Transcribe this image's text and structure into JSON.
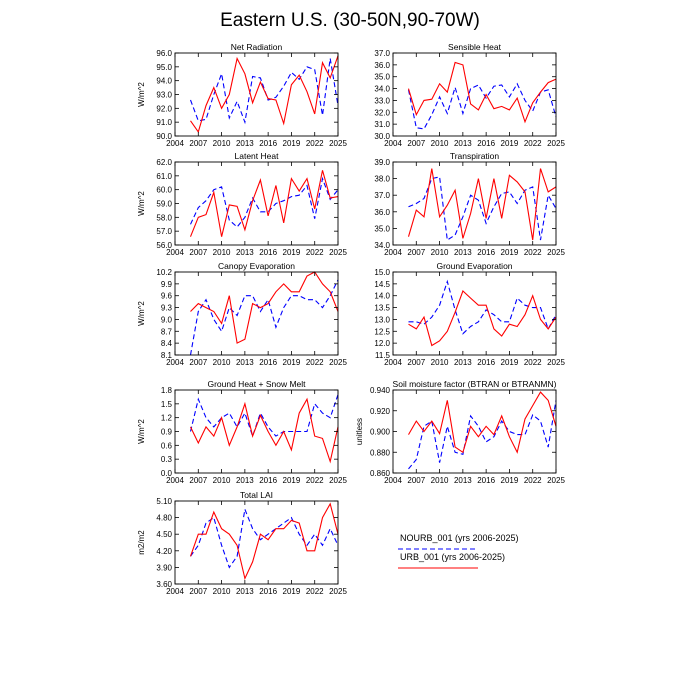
{
  "title": "Eastern U.S. (30-50N,90-70W)",
  "legend": [
    {
      "label": "NOURB_001 (yrs 2006-2025)",
      "color": "#0000ff",
      "dashed": true
    },
    {
      "label": "URB_001 (yrs 2006-2025)",
      "color": "#ff0000",
      "dashed": false
    }
  ],
  "chart_data": [
    {
      "type": "line",
      "title": "Net Radiation",
      "ylabel": "W/m^2",
      "xlim": [
        2004,
        2025
      ],
      "xticks": [
        2004,
        2007,
        2010,
        2013,
        2016,
        2019,
        2022,
        2025
      ],
      "ylim": [
        90.0,
        96.0
      ],
      "yticks": [
        "90.0",
        "91.0",
        "92.0",
        "93.0",
        "94.0",
        "95.0",
        "96.0"
      ],
      "x": [
        2006,
        2007,
        2008,
        2009,
        2010,
        2011,
        2012,
        2013,
        2014,
        2015,
        2016,
        2017,
        2018,
        2019,
        2020,
        2021,
        2022,
        2023,
        2024,
        2025
      ],
      "series": [
        {
          "name": "NOURB_001",
          "color": "#0000ff",
          "dashed": true,
          "values": [
            92.6,
            91.1,
            91.2,
            93.0,
            94.5,
            91.3,
            92.5,
            91.0,
            94.3,
            94.2,
            92.6,
            92.8,
            93.6,
            94.6,
            94.1,
            95.0,
            94.8,
            91.5,
            95.6,
            92.2
          ]
        },
        {
          "name": "URB_001",
          "color": "#ff0000",
          "dashed": false,
          "values": [
            91.1,
            90.3,
            92.2,
            93.5,
            92.0,
            93.0,
            95.6,
            94.5,
            92.4,
            93.9,
            92.7,
            92.6,
            90.9,
            93.7,
            94.4,
            93.2,
            91.6,
            95.3,
            94.2,
            95.8
          ]
        }
      ]
    },
    {
      "type": "line",
      "title": "Sensible Heat",
      "ylabel": "",
      "xlim": [
        2004,
        2025
      ],
      "xticks": [
        2004,
        2007,
        2010,
        2013,
        2016,
        2019,
        2022,
        2025
      ],
      "ylim": [
        30.0,
        37.0
      ],
      "yticks": [
        "30.0",
        "31.0",
        "32.0",
        "33.0",
        "34.0",
        "35.0",
        "36.0",
        "37.0"
      ],
      "x": [
        2006,
        2007,
        2008,
        2009,
        2010,
        2011,
        2012,
        2013,
        2014,
        2015,
        2016,
        2017,
        2018,
        2019,
        2020,
        2021,
        2022,
        2023,
        2024,
        2025
      ],
      "series": [
        {
          "name": "NOURB_001",
          "color": "#0000ff",
          "dashed": true,
          "values": [
            33.9,
            30.7,
            30.6,
            31.8,
            33.3,
            31.9,
            34.1,
            31.9,
            34.0,
            34.3,
            33.2,
            34.2,
            34.3,
            33.3,
            34.4,
            33.0,
            32.1,
            33.7,
            33.9,
            31.6
          ]
        },
        {
          "name": "URB_001",
          "color": "#ff0000",
          "dashed": false,
          "values": [
            34.0,
            31.8,
            33.0,
            33.1,
            34.4,
            33.7,
            36.2,
            36.0,
            32.7,
            32.2,
            33.5,
            32.3,
            32.5,
            32.2,
            33.2,
            31.2,
            32.8,
            33.7,
            34.5,
            34.8
          ]
        }
      ]
    },
    {
      "type": "line",
      "title": "Latent Heat",
      "ylabel": "W/m^2",
      "xlim": [
        2004,
        2025
      ],
      "xticks": [
        2004,
        2007,
        2010,
        2013,
        2016,
        2019,
        2022,
        2025
      ],
      "ylim": [
        56.0,
        62.0
      ],
      "yticks": [
        "56.0",
        "57.0",
        "58.0",
        "59.0",
        "60.0",
        "61.0",
        "62.0"
      ],
      "x": [
        2006,
        2007,
        2008,
        2009,
        2010,
        2011,
        2012,
        2013,
        2014,
        2015,
        2016,
        2017,
        2018,
        2019,
        2020,
        2021,
        2022,
        2023,
        2024,
        2025
      ],
      "series": [
        {
          "name": "NOURB_001",
          "color": "#0000ff",
          "dashed": true,
          "values": [
            57.5,
            58.7,
            59.2,
            60.0,
            60.2,
            57.8,
            57.3,
            58.0,
            59.4,
            58.4,
            58.4,
            59.0,
            59.2,
            59.5,
            59.6,
            60.3,
            57.9,
            60.8,
            59.3,
            60.0
          ]
        },
        {
          "name": "URB_001",
          "color": "#ff0000",
          "dashed": false,
          "values": [
            56.6,
            58.0,
            58.2,
            59.8,
            56.6,
            58.9,
            58.8,
            57.1,
            59.2,
            60.7,
            58.1,
            60.3,
            57.6,
            60.8,
            59.9,
            60.8,
            58.6,
            61.4,
            59.4,
            59.5
          ]
        }
      ]
    },
    {
      "type": "line",
      "title": "Transpiration",
      "ylabel": "",
      "xlim": [
        2004,
        2025
      ],
      "xticks": [
        2004,
        2007,
        2010,
        2013,
        2016,
        2019,
        2022,
        2025
      ],
      "ylim": [
        34.0,
        39.0
      ],
      "yticks": [
        "34.0",
        "35.0",
        "36.0",
        "37.0",
        "38.0",
        "39.0"
      ],
      "x": [
        2006,
        2007,
        2008,
        2009,
        2010,
        2011,
        2012,
        2013,
        2014,
        2015,
        2016,
        2017,
        2018,
        2019,
        2020,
        2021,
        2022,
        2023,
        2024,
        2025
      ],
      "series": [
        {
          "name": "NOURB_001",
          "color": "#0000ff",
          "dashed": true,
          "values": [
            36.3,
            36.5,
            36.8,
            38.0,
            38.1,
            34.3,
            34.6,
            35.7,
            37.0,
            36.7,
            35.3,
            36.3,
            37.1,
            37.2,
            36.5,
            37.3,
            37.5,
            34.3,
            37.0,
            36.2
          ]
        },
        {
          "name": "URB_001",
          "color": "#ff0000",
          "dashed": false,
          "values": [
            34.5,
            36.1,
            35.7,
            38.6,
            35.7,
            36.4,
            37.3,
            34.4,
            35.9,
            38.0,
            35.6,
            38.0,
            35.6,
            38.2,
            37.8,
            37.2,
            34.3,
            38.6,
            37.2,
            37.5
          ]
        }
      ]
    },
    {
      "type": "line",
      "title": "Canopy Evaporation",
      "ylabel": "W/m^2",
      "xlim": [
        2004,
        2025
      ],
      "xticks": [
        2004,
        2007,
        2010,
        2013,
        2016,
        2019,
        2022,
        2025
      ],
      "ylim": [
        8.1,
        10.2
      ],
      "yticks": [
        "8.1",
        "8.4",
        "8.7",
        "9.0",
        "9.3",
        "9.6",
        "9.9",
        "10.2"
      ],
      "x": [
        2006,
        2007,
        2008,
        2009,
        2010,
        2011,
        2012,
        2013,
        2014,
        2015,
        2016,
        2017,
        2018,
        2019,
        2020,
        2021,
        2022,
        2023,
        2024,
        2025
      ],
      "series": [
        {
          "name": "NOURB_001",
          "color": "#0000ff",
          "dashed": true,
          "values": [
            8.1,
            9.2,
            9.5,
            9.0,
            8.7,
            9.3,
            9.1,
            9.6,
            9.6,
            9.2,
            9.5,
            8.8,
            9.3,
            9.6,
            9.6,
            9.5,
            9.5,
            9.3,
            9.6,
            10.0
          ]
        },
        {
          "name": "URB_001",
          "color": "#ff0000",
          "dashed": false,
          "values": [
            9.2,
            9.4,
            9.3,
            9.2,
            8.9,
            9.6,
            8.4,
            8.5,
            9.4,
            9.3,
            9.4,
            9.7,
            9.9,
            9.7,
            9.7,
            10.1,
            10.2,
            9.9,
            9.7,
            9.2
          ]
        }
      ]
    },
    {
      "type": "line",
      "title": "Ground Evaporation",
      "ylabel": "",
      "xlim": [
        2004,
        2025
      ],
      "xticks": [
        2004,
        2007,
        2010,
        2013,
        2016,
        2019,
        2022,
        2025
      ],
      "ylim": [
        11.5,
        15.0
      ],
      "yticks": [
        "11.5",
        "12.0",
        "12.5",
        "13.0",
        "13.5",
        "14.0",
        "14.5",
        "15.0"
      ],
      "x": [
        2006,
        2007,
        2008,
        2009,
        2010,
        2011,
        2012,
        2013,
        2014,
        2015,
        2016,
        2017,
        2018,
        2019,
        2020,
        2021,
        2022,
        2023,
        2024,
        2025
      ],
      "series": [
        {
          "name": "NOURB_001",
          "color": "#0000ff",
          "dashed": true,
          "values": [
            12.9,
            12.9,
            12.8,
            13.1,
            13.6,
            14.6,
            13.4,
            12.4,
            12.7,
            12.9,
            13.4,
            13.2,
            12.9,
            12.9,
            13.9,
            13.6,
            13.5,
            13.5,
            12.6,
            13.2
          ]
        },
        {
          "name": "URB_001",
          "color": "#ff0000",
          "dashed": false,
          "values": [
            12.8,
            12.6,
            13.1,
            11.9,
            12.1,
            12.5,
            13.3,
            14.2,
            13.9,
            13.6,
            13.6,
            12.6,
            12.3,
            12.8,
            12.7,
            13.2,
            14.0,
            13.0,
            12.6,
            13.1
          ]
        }
      ]
    },
    {
      "type": "line",
      "title": "Ground Heat + Snow Melt",
      "ylabel": "W/m^2",
      "xlim": [
        2004,
        2025
      ],
      "xticks": [
        2004,
        2007,
        2010,
        2013,
        2016,
        2019,
        2022,
        2025
      ],
      "ylim": [
        0.0,
        1.8
      ],
      "yticks": [
        "0.0",
        "0.3",
        "0.6",
        "0.9",
        "1.2",
        "1.5",
        "1.8"
      ],
      "x": [
        2006,
        2007,
        2008,
        2009,
        2010,
        2011,
        2012,
        2013,
        2014,
        2015,
        2016,
        2017,
        2018,
        2019,
        2020,
        2021,
        2022,
        2023,
        2024,
        2025
      ],
      "series": [
        {
          "name": "NOURB_001",
          "color": "#0000ff",
          "dashed": true,
          "values": [
            0.9,
            1.6,
            1.2,
            1.0,
            1.2,
            1.3,
            1.0,
            1.3,
            0.8,
            1.3,
            1.0,
            0.8,
            0.9,
            0.9,
            0.9,
            0.9,
            1.5,
            1.3,
            1.2,
            1.7
          ]
        },
        {
          "name": "URB_001",
          "color": "#ff0000",
          "dashed": false,
          "values": [
            1.0,
            0.65,
            1.0,
            0.8,
            1.2,
            0.6,
            1.0,
            1.5,
            0.8,
            1.25,
            0.9,
            0.6,
            0.9,
            0.5,
            1.3,
            1.6,
            0.8,
            0.75,
            0.25,
            1.0
          ]
        }
      ]
    },
    {
      "type": "line",
      "title": "Soil moisture factor (BTRAN or BTRANMN)",
      "ylabel": "unitless",
      "xlim": [
        2004,
        2025
      ],
      "xticks": [
        2004,
        2007,
        2010,
        2013,
        2016,
        2019,
        2022,
        2025
      ],
      "ylim": [
        0.86,
        0.94
      ],
      "yticks": [
        "0.860",
        "0.880",
        "0.900",
        "0.920",
        "0.940"
      ],
      "x": [
        2006,
        2007,
        2008,
        2009,
        2010,
        2011,
        2012,
        2013,
        2014,
        2015,
        2016,
        2017,
        2018,
        2019,
        2020,
        2021,
        2022,
        2023,
        2024,
        2025
      ],
      "series": [
        {
          "name": "NOURB_001",
          "color": "#0000ff",
          "dashed": true,
          "values": [
            0.864,
            0.873,
            0.905,
            0.91,
            0.87,
            0.905,
            0.88,
            0.878,
            0.915,
            0.905,
            0.89,
            0.895,
            0.91,
            0.9,
            0.897,
            0.897,
            0.916,
            0.91,
            0.885,
            0.93
          ]
        },
        {
          "name": "URB_001",
          "color": "#ff0000",
          "dashed": false,
          "values": [
            0.897,
            0.91,
            0.9,
            0.91,
            0.898,
            0.93,
            0.885,
            0.88,
            0.905,
            0.895,
            0.905,
            0.897,
            0.915,
            0.895,
            0.88,
            0.912,
            0.925,
            0.938,
            0.93,
            0.905
          ]
        }
      ]
    },
    {
      "type": "line",
      "title": "Total LAI",
      "ylabel": "m2/m2",
      "xlim": [
        2004,
        2025
      ],
      "xticks": [
        2004,
        2007,
        2010,
        2013,
        2016,
        2019,
        2022,
        2025
      ],
      "ylim": [
        3.6,
        5.1
      ],
      "yticks": [
        "3.60",
        "3.90",
        "4.20",
        "4.50",
        "4.80",
        "5.10"
      ],
      "x": [
        2006,
        2007,
        2008,
        2009,
        2010,
        2011,
        2012,
        2013,
        2014,
        2015,
        2016,
        2017,
        2018,
        2019,
        2020,
        2021,
        2022,
        2023,
        2024,
        2025
      ],
      "series": [
        {
          "name": "NOURB_001",
          "color": "#0000ff",
          "dashed": true,
          "values": [
            4.1,
            4.3,
            4.7,
            4.8,
            4.3,
            3.9,
            4.1,
            4.95,
            4.6,
            4.4,
            4.5,
            4.6,
            4.7,
            4.8,
            4.5,
            4.3,
            4.5,
            4.3,
            4.6,
            4.3
          ]
        },
        {
          "name": "URB_001",
          "color": "#ff0000",
          "dashed": false,
          "values": [
            4.1,
            4.5,
            4.5,
            4.9,
            4.6,
            4.5,
            4.3,
            3.7,
            4.0,
            4.5,
            4.4,
            4.6,
            4.6,
            4.75,
            4.7,
            4.2,
            4.2,
            4.8,
            5.05,
            4.5
          ]
        }
      ]
    }
  ]
}
